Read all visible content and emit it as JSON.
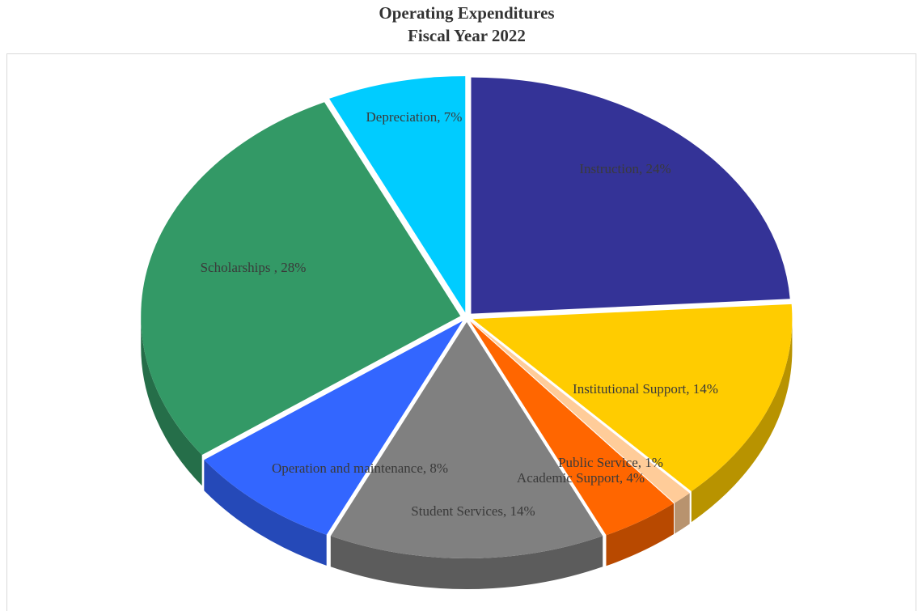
{
  "chart_data": {
    "type": "pie",
    "title": "Operating Expenditures",
    "subtitle": "Fiscal Year 2022",
    "values": [
      24,
      14,
      1,
      4,
      14,
      8,
      28,
      7
    ],
    "value_labels": [
      "Instruction, 24%",
      "Institutional Support, 14%",
      "Public Service, 1%",
      "Academic Support, 4%",
      "Student Services, 14%",
      "Operation and maintenance, 8%",
      "Scholarships , 28%",
      "Depreciation, 7%"
    ],
    "colors": [
      "#343397",
      "#ffcc00",
      "#ffcc99",
      "#ff6600",
      "#808080",
      "#3366ff",
      "#339966",
      "#00ccff"
    ],
    "exploded": true,
    "three_d": true
  }
}
